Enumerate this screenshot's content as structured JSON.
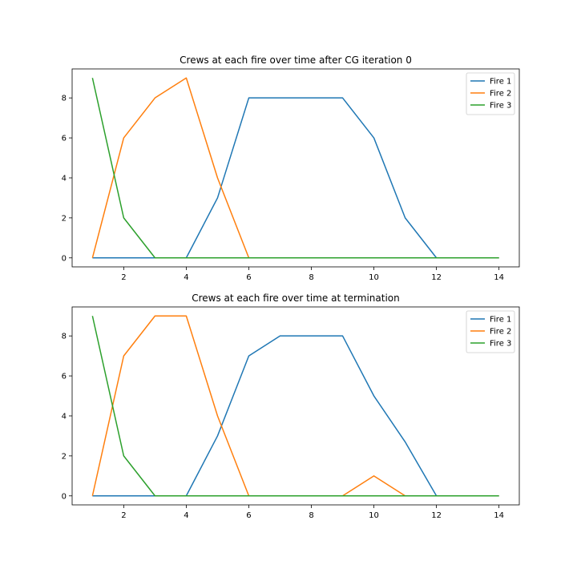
{
  "chart_data": [
    {
      "type": "line",
      "title": "Crews at each fire over time after CG iteration 0",
      "xlabel": "",
      "ylabel": "",
      "x": [
        1,
        2,
        3,
        4,
        5,
        6,
        7,
        8,
        9,
        10,
        11,
        12,
        13,
        14
      ],
      "xlim": [
        0.35,
        14.65
      ],
      "ylim": [
        -0.45,
        9.45
      ],
      "xticks": [
        2,
        4,
        6,
        8,
        10,
        12,
        14
      ],
      "yticks": [
        0,
        2,
        4,
        6,
        8
      ],
      "legend": "top-right",
      "grid": false,
      "series": [
        {
          "name": "Fire 1",
          "color": "#1f77b4",
          "values": [
            0,
            0,
            0,
            0,
            3,
            8,
            8,
            8,
            8,
            6,
            2,
            0,
            0,
            0
          ]
        },
        {
          "name": "Fire 2",
          "color": "#ff7f0e",
          "values": [
            0,
            6,
            8,
            9,
            4,
            0,
            0,
            0,
            0,
            0,
            0,
            0,
            0,
            0
          ]
        },
        {
          "name": "Fire 3",
          "color": "#2ca02c",
          "values": [
            9,
            2,
            0,
            0,
            0,
            0,
            0,
            0,
            0,
            0,
            0,
            0,
            0,
            0
          ]
        }
      ]
    },
    {
      "type": "line",
      "title": "Crews at each fire over time at termination",
      "xlabel": "",
      "ylabel": "",
      "x": [
        1,
        2,
        3,
        4,
        5,
        6,
        7,
        8,
        9,
        10,
        11,
        12,
        13,
        14
      ],
      "xlim": [
        0.35,
        14.65
      ],
      "ylim": [
        -0.45,
        9.45
      ],
      "xticks": [
        2,
        4,
        6,
        8,
        10,
        12,
        14
      ],
      "yticks": [
        0,
        2,
        4,
        6,
        8
      ],
      "legend": "top-right",
      "grid": false,
      "series": [
        {
          "name": "Fire 1",
          "color": "#1f77b4",
          "values": [
            0,
            0,
            0,
            0,
            3,
            7,
            8,
            8,
            8,
            5,
            2.7,
            0,
            0,
            0
          ]
        },
        {
          "name": "Fire 2",
          "color": "#ff7f0e",
          "values": [
            0,
            7,
            9,
            9,
            4,
            0,
            0,
            0,
            0,
            1,
            0,
            0,
            0,
            0
          ]
        },
        {
          "name": "Fire 3",
          "color": "#2ca02c",
          "values": [
            9,
            2,
            0,
            0,
            0,
            0,
            0,
            0,
            0,
            0,
            0,
            0,
            0,
            0
          ]
        }
      ]
    }
  ]
}
